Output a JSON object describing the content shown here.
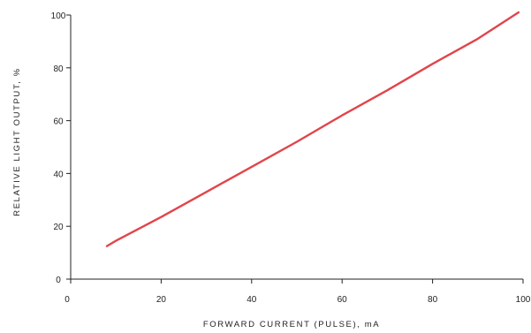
{
  "chart_data": {
    "type": "line",
    "title": "",
    "xlabel": "FORWARD CURRENT (PULSE), mA",
    "ylabel": "RELATIVE LIGHT OUTPUT, %",
    "xlim": [
      0,
      100
    ],
    "ylim": [
      0,
      100
    ],
    "x_ticks": [
      "0",
      "20",
      "40",
      "60",
      "80",
      "100"
    ],
    "y_ticks": [
      "0",
      "20",
      "40",
      "60",
      "80",
      "100"
    ],
    "grid": false,
    "legend": "none",
    "series": [
      {
        "color": "#e0454b",
        "x": [
          8,
          10,
          20,
          30,
          40,
          50,
          60,
          70,
          80,
          90,
          99
        ],
        "y": [
          12.5,
          14.5,
          23.5,
          33,
          42.5,
          52,
          62,
          71.5,
          81.5,
          91,
          101
        ]
      }
    ]
  }
}
